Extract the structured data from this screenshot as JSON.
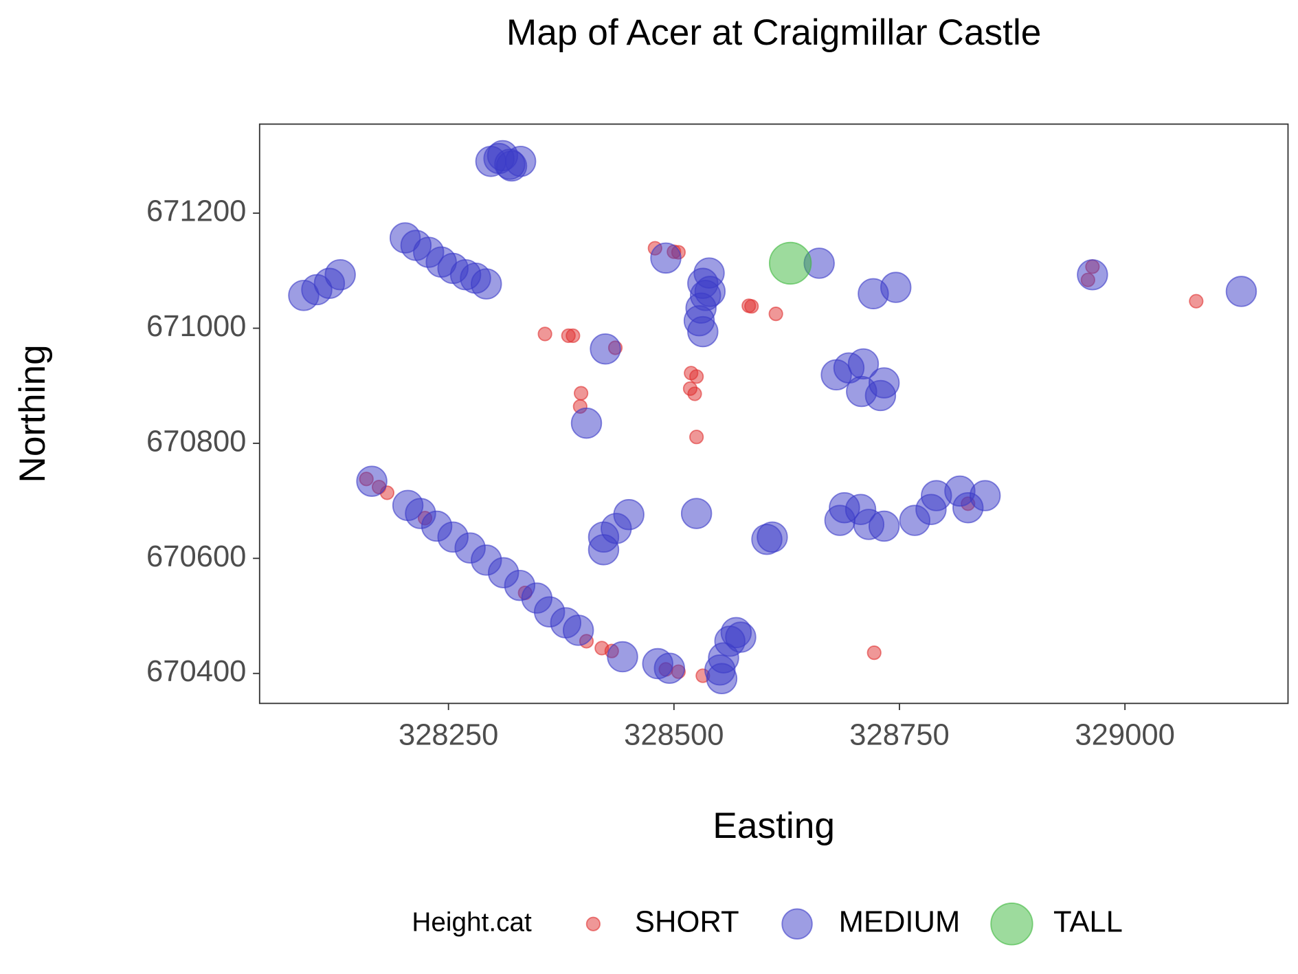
{
  "chart_data": {
    "type": "scatter",
    "title": "Map of Acer at Craigmillar Castle",
    "x_label": "Easting",
    "y_label": "Northing",
    "legend_title": "Height.cat",
    "xlim": [
      328040.6,
      329180.8
    ],
    "ylim": [
      670347.9,
      671354.8
    ],
    "xticks": [
      328250,
      328500,
      328750,
      329000
    ],
    "yticks": [
      670400,
      670600,
      670800,
      671000,
      671200
    ],
    "grid": false,
    "legend_position": "bottom",
    "series": [
      {
        "name": "SHORT",
        "color": "#e03030",
        "x": [
          328479,
          328500,
          328505,
          328357,
          328383,
          328388,
          328397,
          328396,
          328435,
          328519,
          328525,
          328518,
          328523,
          328525,
          328583,
          328586,
          328613,
          328722,
          329079,
          328964,
          328959,
          328159,
          328173,
          328182,
          328224,
          328335,
          328403,
          328420,
          328431,
          328491,
          328505,
          328532,
          328826
        ],
        "values": [
          671139,
          671133,
          671132,
          670990,
          670987,
          670987,
          670887,
          670864,
          670966,
          670922,
          670916,
          670895,
          670886,
          670811,
          671039,
          671038,
          671025,
          670436,
          671047,
          671107,
          671084,
          670738,
          670724,
          670714,
          670670,
          670540,
          670456,
          670444,
          670439,
          670407,
          670403,
          670396,
          670695
        ]
      },
      {
        "name": "MEDIUM",
        "color": "#3b3bc8",
        "x": [
          328306,
          328320,
          328310,
          328330,
          328297,
          328318,
          328089.5,
          328104,
          328118,
          328130,
          328202,
          328214,
          328228,
          328242,
          328255,
          328269,
          328280,
          328292,
          328491,
          328539,
          328532,
          328535,
          328530,
          328528,
          328532,
          328540,
          328661,
          328721,
          328746,
          328964,
          329129,
          328424,
          328403,
          328680,
          328694,
          328710,
          328708,
          328729,
          328733,
          328165,
          328205,
          328219,
          328237,
          328255,
          328274,
          328292,
          328311,
          328329,
          328348,
          328362,
          328380,
          328394,
          328422,
          328436,
          328450,
          328422,
          328443,
          328482,
          328495,
          328525,
          328551,
          328555,
          328562,
          328569,
          328574,
          328553,
          328603,
          328609,
          328684,
          328689,
          328707,
          328716,
          328733,
          328767,
          328785,
          328791,
          328817,
          328826,
          328845
        ],
        "values": [
          671295,
          671282,
          671300,
          671290,
          671290,
          671285,
          671057,
          671067,
          671078,
          671093,
          671157,
          671144,
          671132,
          671115,
          671104,
          671093,
          671087,
          671077,
          671122,
          671096,
          671078,
          671057,
          671035,
          671013,
          670994,
          671064,
          671113,
          671060,
          671071,
          671093,
          671064,
          670964,
          670835,
          670919,
          670931,
          670938,
          670890,
          670883,
          670905,
          670734,
          670692,
          670678,
          670656,
          670637,
          670618,
          670597,
          670575,
          670553,
          670531,
          670507,
          670488,
          670475,
          670637,
          670652,
          670676,
          670615,
          670429,
          670417,
          670409,
          670678,
          670406,
          670427,
          670456,
          670471,
          670463,
          670391,
          670633,
          670637,
          670666,
          670688,
          670685,
          670659,
          670656,
          670666,
          670685,
          670709,
          670717,
          670688,
          670709
        ]
      },
      {
        "name": "TALL",
        "color": "#3cb83c",
        "x": [
          328629
        ],
        "values": [
          671113
        ]
      }
    ]
  }
}
